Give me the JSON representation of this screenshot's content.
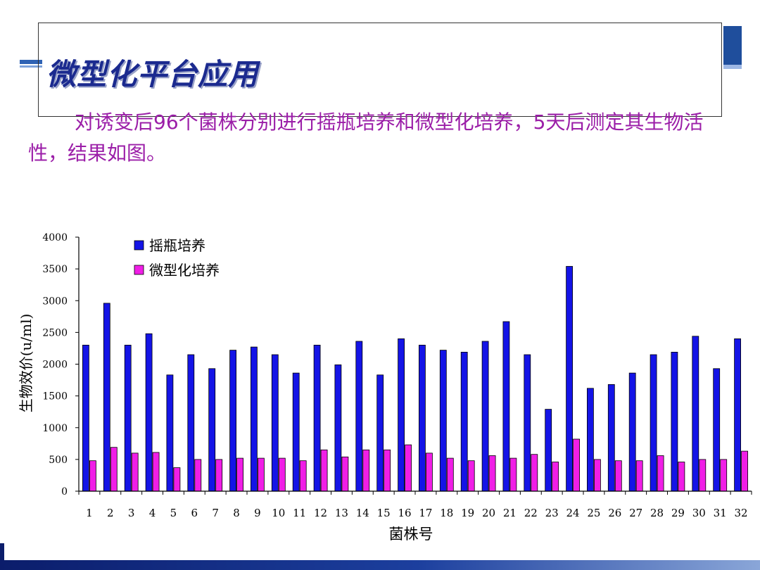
{
  "slide": {
    "title": "微型化平台应用",
    "body": "对诱变后96个菌株分别进行摇瓶培养和微型化培养，5天后测定其生物活性，结果如图。"
  },
  "chart_data": {
    "type": "bar",
    "title": "",
    "xlabel": "菌株号",
    "ylabel": "生物效价(u/ml)",
    "ylim": [
      0,
      4000
    ],
    "yticks": [
      0,
      500,
      1000,
      1500,
      2000,
      2500,
      3000,
      3500,
      4000
    ],
    "categories": [
      "1",
      "2",
      "3",
      "4",
      "5",
      "6",
      "7",
      "8",
      "9",
      "10",
      "11",
      "12",
      "13",
      "14",
      "15",
      "16",
      "17",
      "18",
      "19",
      "20",
      "21",
      "22",
      "23",
      "24",
      "25",
      "26",
      "27",
      "28",
      "29",
      "30",
      "31",
      "32"
    ],
    "legend_position": "top-left",
    "grid": false,
    "series": [
      {
        "name": "摇瓶培养",
        "color": "#1414e6",
        "values": [
          2300,
          2960,
          2300,
          2480,
          1830,
          2150,
          1930,
          2220,
          2270,
          2150,
          1860,
          2300,
          1990,
          2360,
          1830,
          2400,
          2300,
          2220,
          2190,
          2360,
          2670,
          2150,
          1290,
          3540,
          1620,
          1680,
          1860,
          2150,
          2190,
          2440,
          1930,
          2400
        ]
      },
      {
        "name": "微型化培养",
        "color": "#f01ee6",
        "values": [
          480,
          690,
          600,
          610,
          370,
          500,
          500,
          520,
          520,
          520,
          480,
          650,
          540,
          650,
          650,
          730,
          600,
          520,
          480,
          560,
          520,
          580,
          460,
          820,
          500,
          480,
          480,
          560,
          460,
          500,
          500,
          630
        ]
      }
    ]
  }
}
